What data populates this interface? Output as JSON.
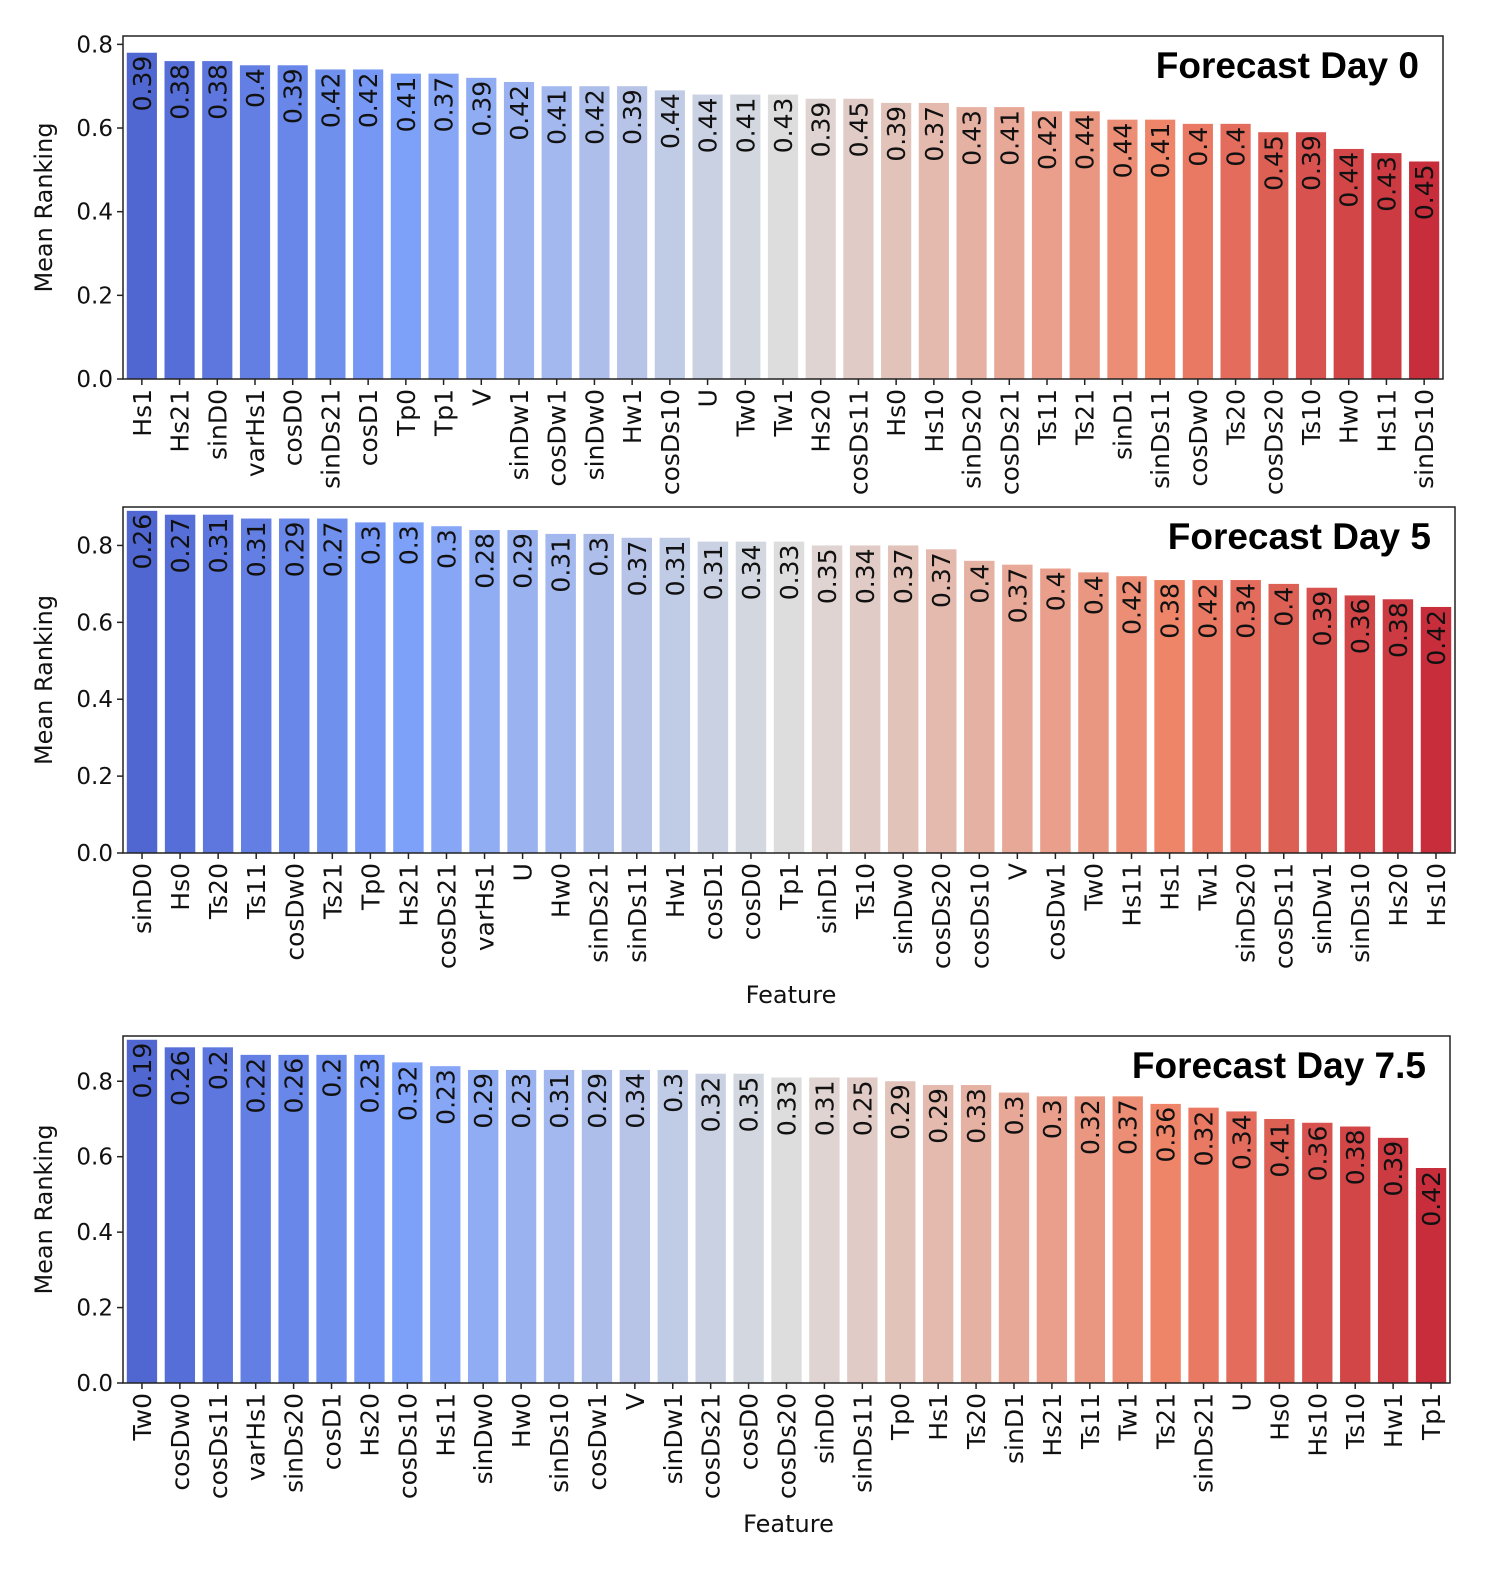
{
  "chart_data": [
    {
      "type": "bar",
      "title": "Forecast Day 0",
      "xlabel": "",
      "ylabel": "Mean Ranking",
      "ylim": [
        0,
        0.82
      ],
      "yticks": [
        "0.0",
        "0.2",
        "0.4",
        "0.6",
        "0.8"
      ],
      "categories": [
        "Hs1",
        "Hs21",
        "sinD0",
        "varHs1",
        "cosD0",
        "sinDs21",
        "cosD1",
        "Tp0",
        "Tp1",
        "V",
        "sinDw1",
        "cosDw1",
        "sinDw0",
        "Hw1",
        "cosDs10",
        "U",
        "Tw0",
        "Tw1",
        "Hs20",
        "cosDs11",
        "Hs0",
        "Hs10",
        "sinDs20",
        "cosDs21",
        "Ts11",
        "Ts21",
        "sinD1",
        "sinDs11",
        "cosDw0",
        "Ts20",
        "cosDs20",
        "Ts10",
        "Hw0",
        "Hs11",
        "sinDs10"
      ],
      "values": [
        0.78,
        0.76,
        0.76,
        0.75,
        0.75,
        0.74,
        0.74,
        0.73,
        0.73,
        0.72,
        0.71,
        0.7,
        0.7,
        0.7,
        0.69,
        0.68,
        0.68,
        0.68,
        0.67,
        0.67,
        0.66,
        0.66,
        0.65,
        0.65,
        0.64,
        0.64,
        0.62,
        0.62,
        0.61,
        0.61,
        0.59,
        0.59,
        0.55,
        0.54,
        0.52
      ],
      "labels": [
        "0.39",
        "0.38",
        "0.38",
        "0.4",
        "0.39",
        "0.42",
        "0.42",
        "0.41",
        "0.37",
        "0.39",
        "0.42",
        "0.41",
        "0.42",
        "0.39",
        "0.44",
        "0.44",
        "0.41",
        "0.43",
        "0.39",
        "0.45",
        "0.39",
        "0.37",
        "0.43",
        "0.41",
        "0.42",
        "0.44",
        "0.44",
        "0.41",
        "0.4",
        "0.4",
        "0.45",
        "0.39",
        "0.44",
        "0.43",
        "0.45"
      ],
      "palette": "coolwarm"
    },
    {
      "type": "bar",
      "title": "Forecast Day 5",
      "xlabel": "Feature",
      "ylabel": "Mean Ranking",
      "ylim": [
        0,
        0.9
      ],
      "yticks": [
        "0.0",
        "0.2",
        "0.4",
        "0.6",
        "0.8"
      ],
      "categories": [
        "sinD0",
        "Hs0",
        "Ts20",
        "Ts11",
        "cosDw0",
        "Ts21",
        "Tp0",
        "Hs21",
        "cosDs21",
        "varHs1",
        "U",
        "Hw0",
        "sinDs21",
        "sinDs11",
        "Hw1",
        "cosD1",
        "cosD0",
        "Tp1",
        "sinD1",
        "Ts10",
        "sinDw0",
        "cosDs20",
        "cosDs10",
        "V",
        "cosDw1",
        "Tw0",
        "Hs11",
        "Hs1",
        "Tw1",
        "sinDs20",
        "cosDs11",
        "sinDw1",
        "sinDs10",
        "Hs20",
        "Hs10"
      ],
      "values": [
        0.89,
        0.88,
        0.88,
        0.87,
        0.87,
        0.87,
        0.86,
        0.86,
        0.85,
        0.84,
        0.84,
        0.83,
        0.83,
        0.82,
        0.82,
        0.81,
        0.81,
        0.81,
        0.8,
        0.8,
        0.8,
        0.79,
        0.76,
        0.75,
        0.74,
        0.73,
        0.72,
        0.71,
        0.71,
        0.71,
        0.7,
        0.69,
        0.67,
        0.66,
        0.64
      ],
      "labels": [
        "0.26",
        "0.27",
        "0.31",
        "0.31",
        "0.29",
        "0.27",
        "0.3",
        "0.3",
        "0.3",
        "0.28",
        "0.29",
        "0.31",
        "0.3",
        "0.37",
        "0.31",
        "0.31",
        "0.34",
        "0.33",
        "0.35",
        "0.34",
        "0.37",
        "0.37",
        "0.4",
        "0.37",
        "0.4",
        "0.4",
        "0.42",
        "0.38",
        "0.42",
        "0.34",
        "0.4",
        "0.39",
        "0.36",
        "0.38",
        "0.42"
      ],
      "palette": "coolwarm"
    },
    {
      "type": "bar",
      "title": "Forecast Day 7.5",
      "xlabel": "Feature",
      "ylabel": "Mean Ranking",
      "ylim": [
        0,
        0.92
      ],
      "yticks": [
        "0.0",
        "0.2",
        "0.4",
        "0.6",
        "0.8"
      ],
      "categories": [
        "Tw0",
        "cosDw0",
        "cosDs11",
        "varHs1",
        "sinDs20",
        "cosD1",
        "Hs20",
        "cosDs10",
        "Hs11",
        "sinDw0",
        "Hw0",
        "sinDs10",
        "cosDw1",
        "V",
        "sinDw1",
        "cosDs21",
        "cosD0",
        "cosDs20",
        "sinD0",
        "sinDs11",
        "Tp0",
        "Hs1",
        "Ts20",
        "sinD1",
        "Hs21",
        "Ts11",
        "Tw1",
        "Ts21",
        "sinDs21",
        "U",
        "Hs0",
        "Hs10",
        "Ts10",
        "Hw1",
        "Tp1"
      ],
      "values": [
        0.91,
        0.89,
        0.89,
        0.87,
        0.87,
        0.87,
        0.87,
        0.85,
        0.84,
        0.83,
        0.83,
        0.83,
        0.83,
        0.83,
        0.83,
        0.82,
        0.82,
        0.81,
        0.81,
        0.81,
        0.8,
        0.79,
        0.79,
        0.77,
        0.76,
        0.76,
        0.76,
        0.74,
        0.73,
        0.72,
        0.7,
        0.69,
        0.68,
        0.65,
        0.57
      ],
      "labels": [
        "0.19",
        "0.26",
        "0.2",
        "0.22",
        "0.26",
        "0.2",
        "0.23",
        "0.32",
        "0.23",
        "0.29",
        "0.23",
        "0.31",
        "0.29",
        "0.34",
        "0.3",
        "0.32",
        "0.35",
        "0.33",
        "0.31",
        "0.25",
        "0.29",
        "0.29",
        "0.33",
        "0.3",
        "0.3",
        "0.32",
        "0.37",
        "0.36",
        "0.32",
        "0.34",
        "0.41",
        "0.36",
        "0.38",
        "0.39",
        "0.42"
      ],
      "palette": "coolwarm"
    }
  ]
}
